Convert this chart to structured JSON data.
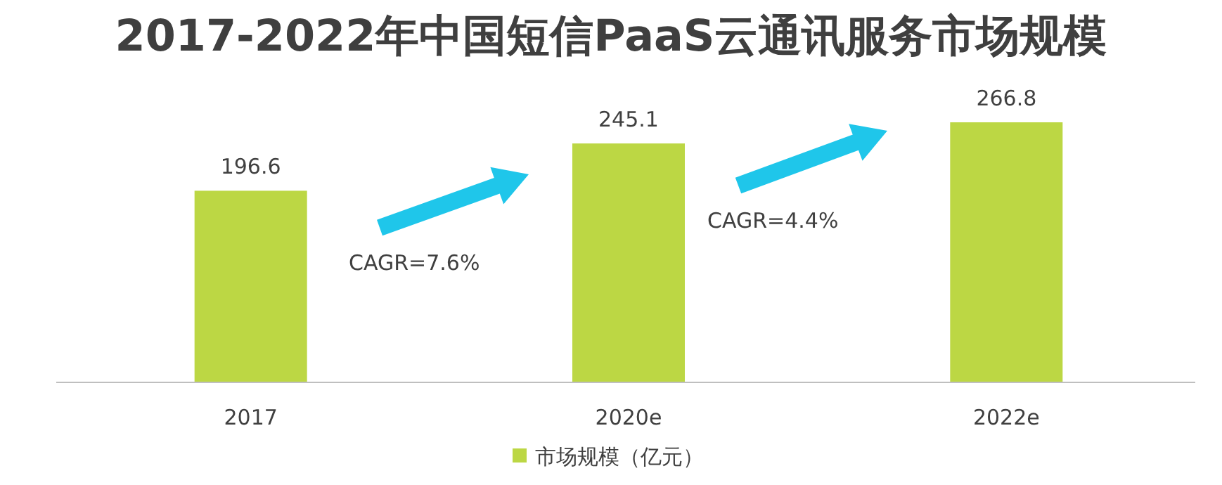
{
  "chart_data": {
    "type": "bar",
    "title": "2017-2022年中国短信PaaS云通讯服务市场规模",
    "categories": [
      "2017",
      "2020e",
      "2022e"
    ],
    "series": [
      {
        "name": "市场规模（亿元）",
        "color": "#bcd744",
        "values": [
          196.6,
          245.1,
          266.8
        ]
      }
    ],
    "data_labels": true,
    "legend": "bottom",
    "annotations": [
      "CAGR=7.6%",
      "CAGR=4.4%"
    ]
  }
}
